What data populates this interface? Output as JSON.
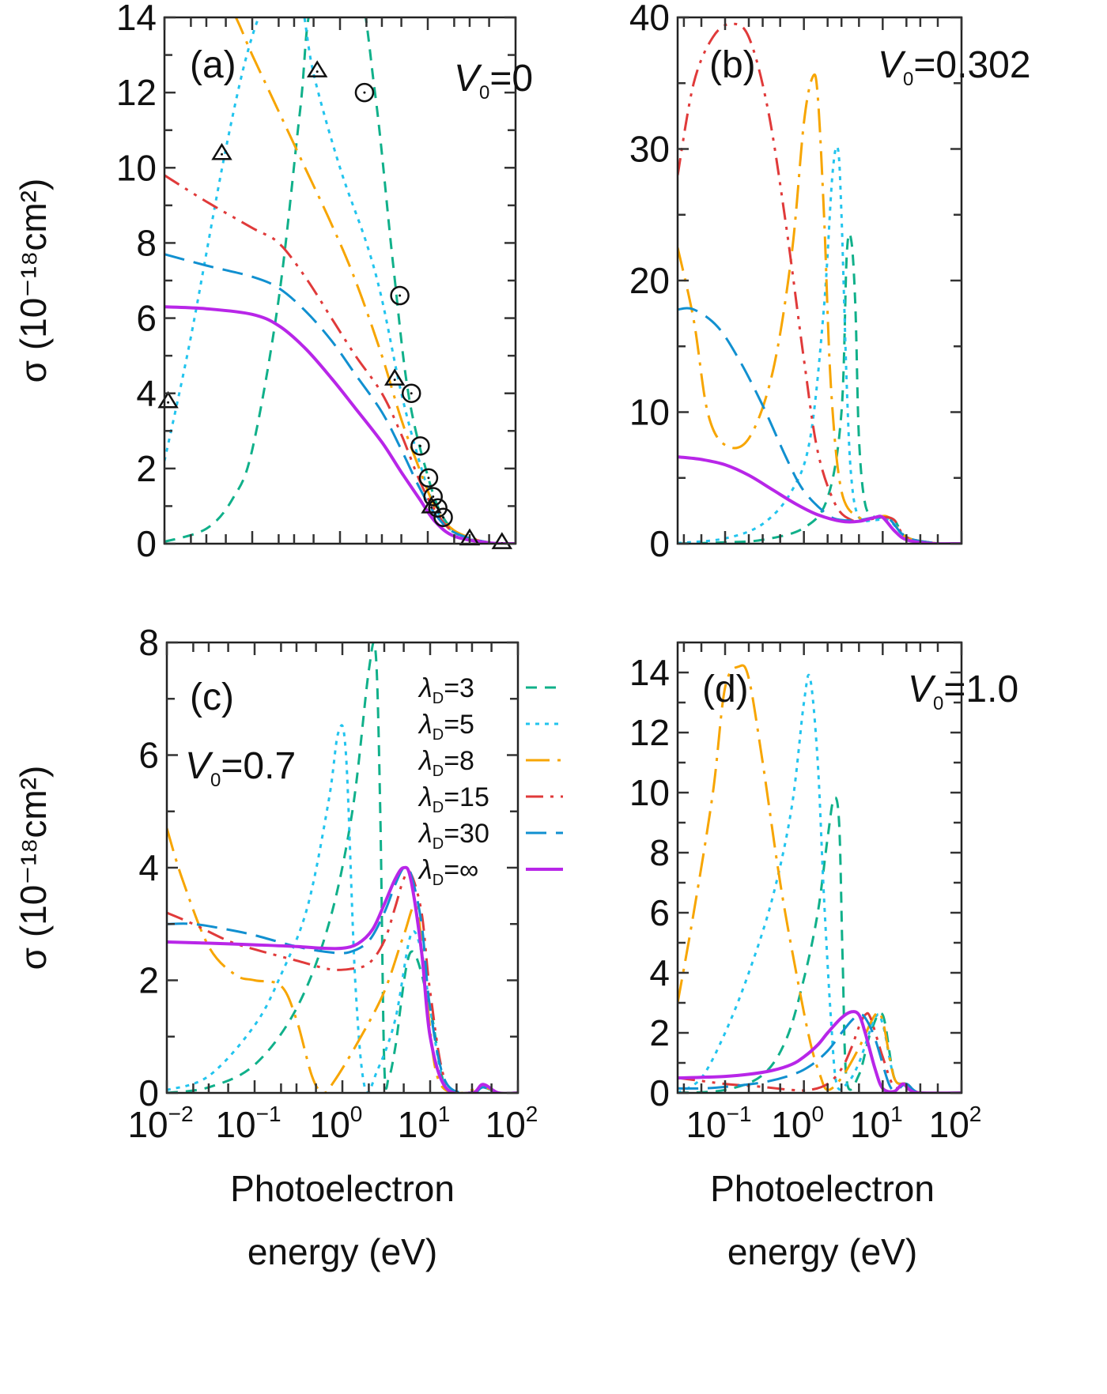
{
  "figure": {
    "ylabel": "σ (10⁻¹⁸cm²)",
    "xlabel_line1": "Photoelectron",
    "xlabel_line2": "energy (eV)"
  },
  "legend": {
    "items": [
      {
        "label": "λD=3",
        "lambda": "3",
        "color": "#10b08a",
        "style": "dashed"
      },
      {
        "label": "λD=5",
        "lambda": "5",
        "color": "#22c4ee",
        "style": "dotted"
      },
      {
        "label": "λD=8",
        "lambda": "8",
        "color": "#f7a500",
        "style": "long-dash-dot"
      },
      {
        "label": "λD=15",
        "lambda": "15",
        "color": "#e03a3a",
        "style": "dash-dot-dot"
      },
      {
        "label": "λD=30",
        "lambda": "30",
        "color": "#1190d0",
        "style": "long-dash"
      },
      {
        "label": "λD=∞",
        "lambda": "∞",
        "color": "#b826e8",
        "style": "solid"
      }
    ],
    "placement": "panel (c) top-right"
  },
  "chart_data": [
    {
      "type": "line",
      "panel": "(a)",
      "annotation": "V0=0",
      "v0": "0",
      "xscale": "log",
      "xlim": [
        0.01,
        100
      ],
      "ylim": [
        0,
        14
      ],
      "yticks": [
        0,
        2,
        4,
        6,
        8,
        10,
        12,
        14
      ],
      "xticks": [],
      "series": [
        {
          "name": "λD=3",
          "x": [
            0.01,
            0.03,
            0.06,
            0.1,
            0.2,
            0.35,
            0.5,
            1.5,
            2.5,
            4,
            6,
            10,
            15,
            25,
            50,
            100
          ],
          "y": [
            0.05,
            0.4,
            1.2,
            2.5,
            6.5,
            11.5,
            14.5,
            15,
            12,
            7.5,
            4,
            1.8,
            0.7,
            0.2,
            0.03,
            0
          ]
        },
        {
          "name": "λD=5",
          "x": [
            0.01,
            0.02,
            0.05,
            0.1,
            0.2,
            0.35,
            0.5,
            1,
            2,
            3,
            5,
            8,
            12,
            20,
            50,
            100
          ],
          "y": [
            2.2,
            5.5,
            10.5,
            13.5,
            15,
            14.5,
            12.5,
            10,
            8,
            6.5,
            4,
            2.2,
            1,
            0.3,
            0.03,
            0
          ]
        },
        {
          "name": "λD=8",
          "x": [
            0.01,
            0.05,
            0.1,
            0.2,
            0.4,
            0.8,
            1.5,
            3,
            5,
            8,
            12,
            20,
            50,
            100
          ],
          "y": [
            17,
            14.5,
            13,
            11.5,
            10,
            8.5,
            7,
            5,
            3.3,
            2,
            1,
            0.35,
            0.03,
            0
          ]
        },
        {
          "name": "λD=15",
          "x": [
            0.01,
            0.03,
            0.1,
            0.2,
            0.4,
            0.8,
            1.5,
            3,
            5,
            8,
            12,
            20,
            50,
            100
          ],
          "y": [
            9.8,
            9.1,
            8.4,
            8.0,
            7.1,
            6.0,
            5.0,
            4.0,
            2.9,
            1.7,
            0.9,
            0.3,
            0.03,
            0
          ]
        },
        {
          "name": "λD=30",
          "x": [
            0.01,
            0.03,
            0.1,
            0.2,
            0.4,
            0.8,
            1.5,
            3,
            5,
            8,
            12,
            20,
            50,
            100
          ],
          "y": [
            7.7,
            7.4,
            7.1,
            6.8,
            6.2,
            5.4,
            4.5,
            3.5,
            2.5,
            1.5,
            0.8,
            0.3,
            0.03,
            0
          ]
        },
        {
          "name": "λD=∞",
          "x": [
            0.01,
            0.03,
            0.1,
            0.2,
            0.4,
            0.8,
            1.5,
            3,
            5,
            8,
            12,
            20,
            50,
            100
          ],
          "y": [
            6.3,
            6.25,
            6.1,
            5.8,
            5.2,
            4.4,
            3.6,
            2.7,
            1.9,
            1.2,
            0.6,
            0.2,
            0.02,
            0
          ]
        }
      ],
      "markers": {
        "triangles": [
          {
            "x": 0.011,
            "y": 3.8
          },
          {
            "x": 0.045,
            "y": 10.4
          },
          {
            "x": 0.55,
            "y": 12.6
          },
          {
            "x": 4.2,
            "y": 4.4
          },
          {
            "x": 11,
            "y": 1.0
          },
          {
            "x": 30,
            "y": 0.15
          },
          {
            "x": 70,
            "y": 0.05
          }
        ],
        "circles": [
          {
            "x": 1.9,
            "y": 12.0
          },
          {
            "x": 4.8,
            "y": 6.6
          },
          {
            "x": 6.5,
            "y": 4.0
          },
          {
            "x": 8.2,
            "y": 2.6
          },
          {
            "x": 10.2,
            "y": 1.75
          },
          {
            "x": 11.5,
            "y": 1.25
          },
          {
            "x": 13,
            "y": 0.95
          },
          {
            "x": 15,
            "y": 0.7
          }
        ]
      }
    },
    {
      "type": "line",
      "panel": "(b)",
      "annotation": "V0=0.302",
      "v0": "0.302",
      "xscale": "log",
      "xlim": [
        0.025,
        100
      ],
      "ylim": [
        0,
        40
      ],
      "yticks": [
        0,
        10,
        20,
        30,
        40
      ],
      "series": [
        {
          "name": "λD=3",
          "x": [
            0.025,
            0.1,
            0.3,
            1,
            2,
            3,
            3.5,
            4,
            4.5,
            5,
            6,
            8,
            10,
            14,
            20,
            50,
            100
          ],
          "y": [
            0,
            0.1,
            0.3,
            1.2,
            3.5,
            10,
            22,
            23,
            18,
            8,
            3,
            2,
            2,
            1.8,
            0.5,
            0.02,
            0
          ]
        },
        {
          "name": "λD=5",
          "x": [
            0.025,
            0.1,
            0.3,
            0.7,
            1.2,
            1.8,
            2.3,
            2.7,
            3,
            3.5,
            4,
            5,
            8,
            12,
            20,
            50,
            100
          ],
          "y": [
            0.05,
            0.4,
            1.5,
            4,
            8,
            18,
            28,
            30,
            25,
            12,
            5,
            2,
            1.8,
            1.8,
            0.5,
            0.02,
            0
          ]
        },
        {
          "name": "λD=8",
          "x": [
            0.025,
            0.04,
            0.06,
            0.1,
            0.2,
            0.4,
            0.7,
            1,
            1.3,
            1.5,
            1.8,
            2.2,
            3,
            5,
            8,
            12,
            20,
            50,
            100
          ],
          "y": [
            22.5,
            17,
            10,
            7.5,
            8,
            13,
            22,
            32,
            35.5,
            34,
            25,
            12,
            4,
            2,
            2,
            2,
            0.5,
            0.02,
            0
          ]
        },
        {
          "name": "λD=15",
          "x": [
            0.025,
            0.04,
            0.07,
            0.12,
            0.2,
            0.35,
            0.6,
            1,
            1.5,
            2.5,
            4,
            6,
            10,
            14,
            20,
            50,
            100
          ],
          "y": [
            28,
            35,
            38.5,
            39.5,
            38.5,
            33,
            24,
            14,
            7,
            3,
            1.8,
            1.8,
            2,
            1.8,
            0.5,
            0.02,
            0
          ]
        },
        {
          "name": "λD=30",
          "x": [
            0.025,
            0.04,
            0.08,
            0.15,
            0.3,
            0.6,
            1,
            2,
            3,
            5,
            8,
            12,
            20,
            50,
            100
          ],
          "y": [
            17.8,
            17.8,
            16.5,
            14,
            10.5,
            6.5,
            4,
            2.2,
            1.8,
            1.8,
            2,
            1.9,
            0.5,
            0.02,
            0
          ]
        },
        {
          "name": "λD=∞",
          "x": [
            0.025,
            0.05,
            0.1,
            0.2,
            0.4,
            0.8,
            1.5,
            3,
            5,
            8,
            10,
            14,
            20,
            40,
            100
          ],
          "y": [
            6.6,
            6.4,
            6.0,
            5.2,
            4.1,
            3.0,
            2.2,
            1.7,
            1.7,
            2.0,
            2.0,
            1.0,
            0.3,
            0.02,
            0
          ]
        }
      ]
    },
    {
      "type": "line",
      "panel": "(c)",
      "annotation": "V0=0.7",
      "v0": "0.7",
      "xscale": "log",
      "xlim": [
        0.01,
        100
      ],
      "ylim": [
        0,
        8
      ],
      "yticks": [
        0,
        2,
        4,
        6,
        8
      ],
      "xticks": [
        "10^-2",
        "10^-1",
        "10^0",
        "10^1",
        "10^2"
      ],
      "series": [
        {
          "name": "λD=3",
          "x": [
            0.01,
            0.03,
            0.1,
            0.3,
            0.7,
            1.3,
            2,
            2.4,
            2.7,
            3,
            3.4,
            4,
            6,
            10,
            15,
            30,
            40,
            60,
            100
          ],
          "y": [
            0,
            0.1,
            0.5,
            1.5,
            3,
            5,
            7.5,
            7.8,
            5,
            0.5,
            0.3,
            0.8,
            2.5,
            1.5,
            0.1,
            0,
            0.1,
            0,
            0
          ]
        },
        {
          "name": "λD=5",
          "x": [
            0.01,
            0.03,
            0.1,
            0.2,
            0.4,
            0.7,
            0.9,
            1.1,
            1.4,
            1.8,
            2.5,
            4,
            6,
            8,
            10,
            15,
            30,
            40,
            60,
            100
          ],
          "y": [
            0.05,
            0.3,
            1.2,
            2.1,
            3.3,
            5.2,
            6.4,
            6.0,
            2.0,
            0.1,
            0.4,
            1.3,
            2.8,
            2.5,
            1.5,
            0.1,
            0,
            0.1,
            0,
            0
          ]
        },
        {
          "name": "λD=8",
          "x": [
            0.01,
            0.015,
            0.03,
            0.06,
            0.1,
            0.2,
            0.3,
            0.45,
            0.6,
            0.8,
            1.5,
            3,
            5,
            7,
            9,
            12,
            20,
            40,
            60,
            100
          ],
          "y": [
            4.7,
            3.8,
            2.6,
            2.1,
            2.0,
            1.9,
            1.3,
            0.3,
            0,
            0.2,
            0.9,
            1.8,
            2.8,
            3.3,
            1.8,
            0.3,
            0,
            0.1,
            0,
            0
          ]
        },
        {
          "name": "λD=15",
          "x": [
            0.01,
            0.02,
            0.05,
            0.1,
            0.3,
            0.7,
            1.2,
            2,
            3,
            4,
            5,
            6,
            8,
            10,
            15,
            30,
            40,
            60,
            100
          ],
          "y": [
            3.2,
            3.0,
            2.7,
            2.55,
            2.35,
            2.2,
            2.2,
            2.3,
            2.7,
            3.3,
            3.8,
            3.9,
            3.2,
            1.8,
            0.2,
            0,
            0.1,
            0,
            0
          ]
        },
        {
          "name": "λD=30",
          "x": [
            0.01,
            0.02,
            0.05,
            0.1,
            0.3,
            0.7,
            1.2,
            2,
            3,
            4,
            5,
            6,
            8,
            10,
            15,
            30,
            40,
            60,
            100
          ],
          "y": [
            3.0,
            3.0,
            2.9,
            2.8,
            2.6,
            2.5,
            2.5,
            2.7,
            3.2,
            3.7,
            4.0,
            3.9,
            3.0,
            1.5,
            0.2,
            0,
            0.1,
            0,
            0
          ]
        },
        {
          "name": "λD=∞",
          "x": [
            0.01,
            0.03,
            0.1,
            0.3,
            0.6,
            1,
            1.5,
            2.2,
            3,
            4,
            5,
            6,
            8,
            10,
            15,
            30,
            40,
            60,
            100
          ],
          "y": [
            2.68,
            2.66,
            2.63,
            2.6,
            2.57,
            2.57,
            2.65,
            2.9,
            3.35,
            3.8,
            4.0,
            3.8,
            2.5,
            1.0,
            0.1,
            0,
            0.15,
            0,
            0
          ]
        }
      ]
    },
    {
      "type": "line",
      "panel": "(d)",
      "annotation": "V0=1.0",
      "v0": "1.0",
      "xscale": "log",
      "xlim": [
        0.025,
        100
      ],
      "ylim": [
        0,
        15
      ],
      "yticks": [
        0,
        2,
        4,
        6,
        8,
        10,
        12,
        14
      ],
      "xticks": [
        "10^-1",
        "10^0",
        "10^1",
        "10^2"
      ],
      "series": [
        {
          "name": "λD=3",
          "x": [
            0.025,
            0.1,
            0.3,
            0.6,
            1,
            1.5,
            2,
            2.4,
            2.8,
            3.1,
            3.5,
            5,
            7,
            10,
            14,
            20,
            30,
            100
          ],
          "y": [
            0,
            0.1,
            0.6,
            1.8,
            3.8,
            6.0,
            8.5,
            9.8,
            9.0,
            4.5,
            0.4,
            0.6,
            2.0,
            2.6,
            0.5,
            0.3,
            0,
            0
          ]
        },
        {
          "name": "λD=5",
          "x": [
            0.025,
            0.05,
            0.1,
            0.2,
            0.4,
            0.7,
            1,
            1.2,
            1.5,
            1.8,
            2.2,
            2.6,
            3.5,
            5,
            8,
            10,
            14,
            20,
            30,
            100
          ],
          "y": [
            0,
            0.5,
            2,
            4,
            6.5,
            9.5,
            13,
            13.8,
            11,
            6.5,
            2.5,
            0.3,
            0.3,
            1,
            2.5,
            2.3,
            0.5,
            0.3,
            0,
            0
          ]
        },
        {
          "name": "λD=8",
          "x": [
            0.025,
            0.04,
            0.07,
            0.1,
            0.15,
            0.2,
            0.3,
            0.5,
            0.8,
            1.2,
            1.6,
            2,
            3,
            5,
            8,
            10,
            14,
            20,
            30,
            100
          ],
          "y": [
            3,
            6,
            10,
            13.5,
            14.2,
            13.8,
            11,
            7,
            4,
            1.7,
            0.6,
            0.1,
            0.5,
            1.5,
            2.6,
            2.4,
            0.5,
            0.3,
            0,
            0
          ]
        },
        {
          "name": "λD=15",
          "x": [
            0.025,
            0.05,
            0.1,
            0.3,
            0.7,
            1.2,
            2,
            3,
            4,
            5,
            6,
            7,
            10,
            14,
            20,
            30,
            100
          ],
          "y": [
            0.5,
            0.4,
            0.3,
            0.2,
            0.1,
            0.1,
            0.3,
            0.8,
            1.5,
            2.2,
            2.6,
            2.5,
            1.2,
            0.2,
            0.3,
            0,
            0
          ]
        },
        {
          "name": "λD=30",
          "x": [
            0.025,
            0.05,
            0.1,
            0.3,
            0.7,
            1.2,
            2,
            3,
            4,
            5,
            6,
            8,
            12,
            15,
            20,
            30,
            100
          ],
          "y": [
            0.15,
            0.15,
            0.2,
            0.35,
            0.6,
            0.9,
            1.4,
            2.0,
            2.4,
            2.6,
            2.5,
            1.8,
            0.3,
            0.1,
            0.3,
            0,
            0
          ]
        },
        {
          "name": "λD=∞",
          "x": [
            0.025,
            0.05,
            0.1,
            0.2,
            0.4,
            0.7,
            1,
            1.5,
            2,
            3,
            4,
            5,
            6,
            8,
            10,
            14,
            18,
            22,
            30,
            100
          ],
          "y": [
            0.5,
            0.52,
            0.55,
            0.62,
            0.75,
            0.95,
            1.2,
            1.6,
            2.0,
            2.5,
            2.7,
            2.6,
            2.0,
            0.8,
            0.15,
            0.05,
            0.3,
            0.1,
            0,
            0
          ]
        }
      ]
    }
  ]
}
